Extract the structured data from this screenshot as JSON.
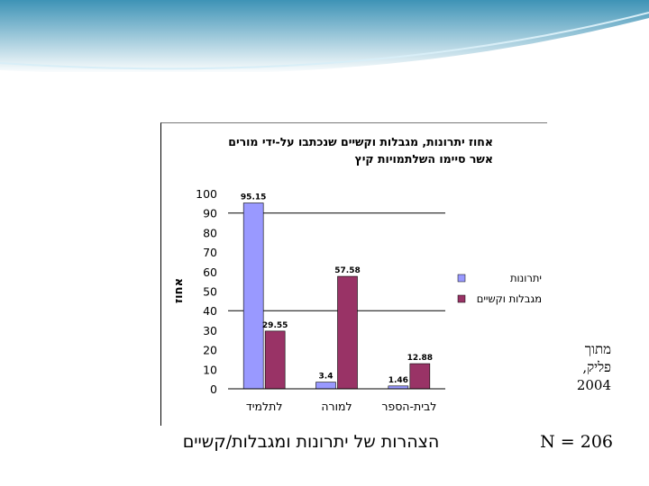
{
  "colors": {
    "header_top": "#3e93b6",
    "header_bottom": "#ffffff",
    "gridline": "#000000",
    "bg": "#ffffff"
  },
  "chart_data": {
    "type": "bar",
    "title": "אחוז יתרונות, מגבלות וקשיים שנכתבו על-ידי מורים\nאשר סיימו השלתמויות קיץ",
    "ylabel": "אחוז",
    "xlabel": "",
    "ylim": [
      0,
      100
    ],
    "yticks": [
      0,
      10,
      20,
      30,
      40,
      50,
      60,
      70,
      80,
      90,
      100
    ],
    "categories": [
      "לתלמיד",
      "למורה",
      "לבית-הספר"
    ],
    "series": [
      {
        "name": "יתרונות",
        "color": "#9999ff",
        "values": [
          95.15,
          3.4,
          1.46
        ],
        "labels": [
          "95.15",
          "3.4",
          "1.46"
        ]
      },
      {
        "name": "מגבלות וקשיים",
        "color": "#993366",
        "values": [
          29.55,
          57.58,
          12.88
        ],
        "labels": [
          "29.55",
          "57.58",
          "12.88"
        ]
      }
    ],
    "gridlines": [
      40,
      90
    ],
    "legend_position": "right"
  },
  "footer": {
    "title": "הצהרות של יתרונות ומגבלות/קשיים",
    "n_label": "N = 206"
  },
  "source_note": "מתוך\nפליק,\n2004"
}
